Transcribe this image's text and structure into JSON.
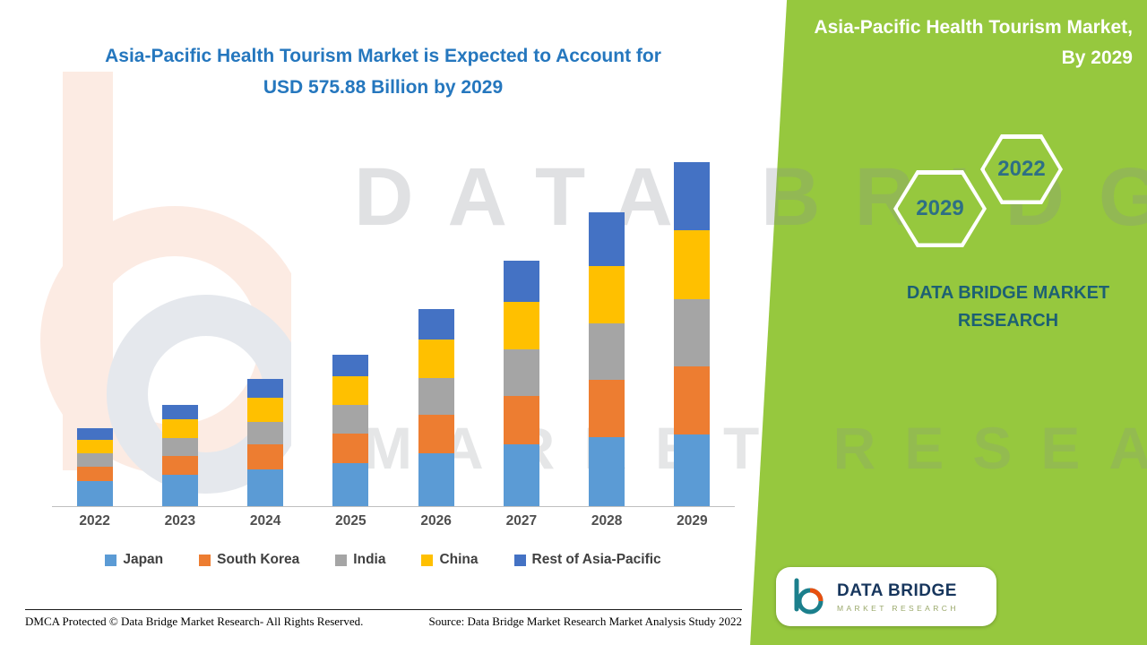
{
  "header": {
    "main_title_line1": "Asia-Pacific Health Tourism Market is Expected to Account for",
    "main_title_line2": "USD 575.88 Billion by 2029"
  },
  "side_panel": {
    "title_line1": "Asia-Pacific Health Tourism Market,",
    "title_line2": "By 2029",
    "hex_back_label": "2029",
    "hex_front_label": "2022",
    "brand_caption_line1": "DATA BRIDGE MARKET",
    "brand_caption_line2": "RESEARCH",
    "panel_color": "#96c83e",
    "brand_teal": "#1d6073"
  },
  "watermark": {
    "line1": "DATA BRIDGE",
    "line2": "MARKET RESEARCH"
  },
  "logo_card": {
    "brand_name": "DATA BRIDGE",
    "brand_subtitle": "MARKET RESEARCH"
  },
  "footer": {
    "dmca": "DMCA Protected © Data Bridge Market Research- All Rights Reserved.",
    "source": "Source: Data Bridge Market Research Market Analysis Study 2022"
  },
  "chart_data": {
    "type": "bar",
    "stacked": true,
    "title": "Asia-Pacific Health Tourism Market is Expected to Account for USD 575.88 Billion by 2029",
    "units": "USD Billion",
    "xlabel": "",
    "ylabel": "",
    "grid": false,
    "legend_position": "bottom",
    "ylim": [
      0,
      600
    ],
    "categories": [
      "2022",
      "2023",
      "2024",
      "2025",
      "2026",
      "2027",
      "2028",
      "2029"
    ],
    "series": [
      {
        "name": "Japan",
        "color": "#5B9BD5",
        "values": [
          42,
          52,
          62,
          72,
          88,
          104,
          115,
          120
        ]
      },
      {
        "name": "South Korea",
        "color": "#ED7D31",
        "values": [
          24,
          32,
          41,
          50,
          65,
          81,
          97,
          114
        ]
      },
      {
        "name": "India",
        "color": "#A5A5A5",
        "values": [
          22,
          30,
          38,
          47,
          62,
          77,
          94,
          113
        ]
      },
      {
        "name": "China",
        "color": "#FFC000",
        "values": [
          23,
          31,
          40,
          49,
          64,
          80,
          96,
          115
        ]
      },
      {
        "name": "Rest of Asia-Pacific",
        "color": "#4472C4",
        "values": [
          19,
          25,
          32,
          36,
          51,
          69,
          90,
          113.88
        ]
      }
    ],
    "totals": [
      130,
      170,
      213,
      254,
      330,
      411,
      492,
      575.88
    ],
    "highlight_value": "USD 575.88 Billion",
    "highlight_year": "2029"
  }
}
